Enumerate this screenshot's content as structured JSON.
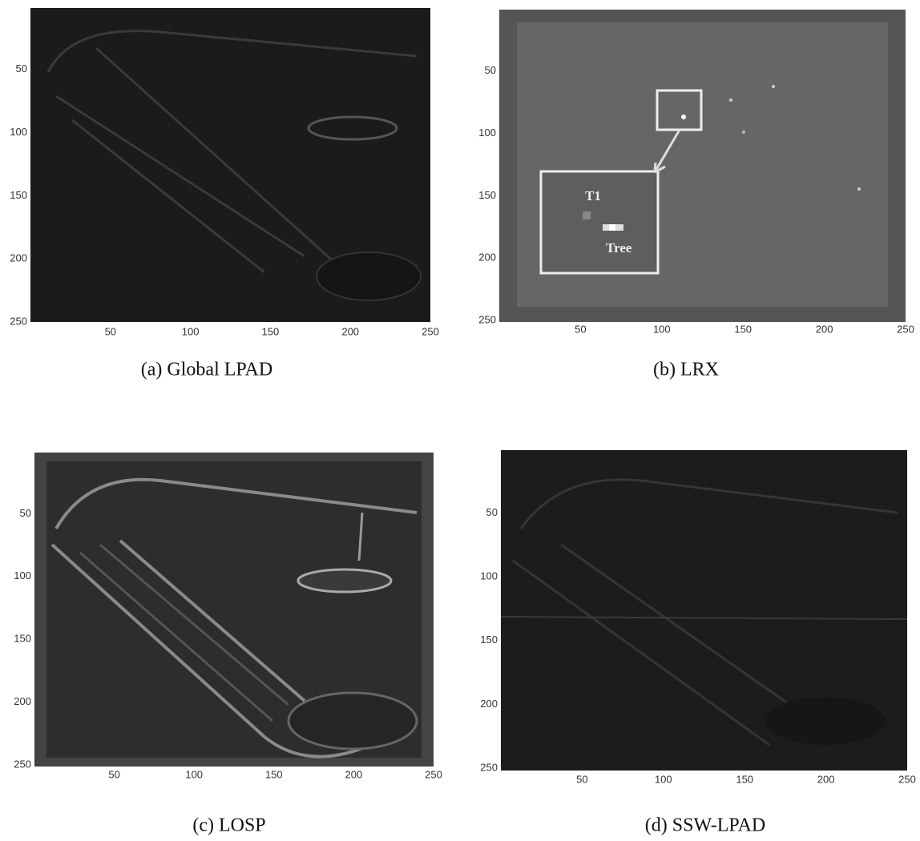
{
  "panels": [
    {
      "caption": "(a) Global LPAD",
      "xticks": [
        50,
        100,
        150,
        200,
        250
      ],
      "yticks": [
        50,
        100,
        150,
        200,
        250
      ]
    },
    {
      "caption": "(b) LRX",
      "xticks": [
        50,
        100,
        150,
        200,
        250
      ],
      "yticks": [
        50,
        100,
        150,
        200,
        250
      ],
      "annotations": [
        "T1",
        "Tree"
      ]
    },
    {
      "caption": "(c) LOSP",
      "xticks": [
        50,
        100,
        150,
        200,
        250
      ],
      "yticks": [
        50,
        100,
        150,
        200,
        250
      ]
    },
    {
      "caption": "(d) SSW-LPAD",
      "xticks": [
        50,
        100,
        150,
        200,
        250
      ],
      "yticks": [
        50,
        100,
        150,
        200,
        250
      ]
    }
  ]
}
